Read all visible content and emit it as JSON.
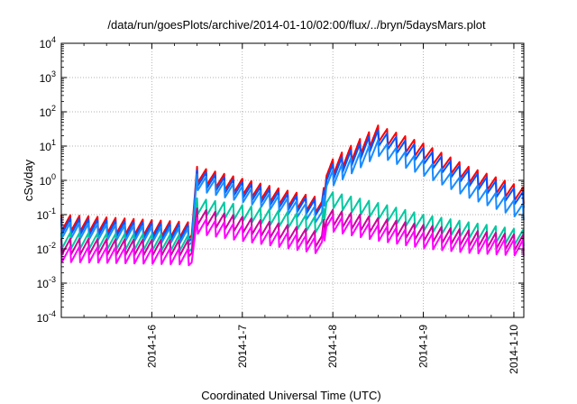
{
  "chart_data": {
    "type": "line",
    "title": "/data/run/goesPlots/archive/2014-01-10/02:00/flux/../bryn/5daysMars.plot",
    "xlabel": "Coordinated Universal Time (UTC)",
    "ylabel": "cSv/day",
    "y_scale": "log",
    "ylim": [
      0.0001,
      10000
    ],
    "xlim": [
      0,
      5.11
    ],
    "y_ticks": [
      {
        "value": 0.0001,
        "base": "10",
        "exp": "-4"
      },
      {
        "value": 0.001,
        "base": "10",
        "exp": "-3"
      },
      {
        "value": 0.01,
        "base": "10",
        "exp": "-2"
      },
      {
        "value": 0.1,
        "base": "10",
        "exp": "-1"
      },
      {
        "value": 1,
        "base": "10",
        "exp": "0"
      },
      {
        "value": 10,
        "base": "10",
        "exp": "1"
      },
      {
        "value": 100,
        "base": "10",
        "exp": "2"
      },
      {
        "value": 1000,
        "base": "10",
        "exp": "3"
      },
      {
        "value": 10000,
        "base": "10",
        "exp": "4"
      }
    ],
    "x_ticks": [
      {
        "value": 1,
        "label": "2014-1-6"
      },
      {
        "value": 2,
        "label": "2014-1-7"
      },
      {
        "value": 3,
        "label": "2014-1-8"
      },
      {
        "value": 4,
        "label": "2014-1-9"
      },
      {
        "value": 5,
        "label": "2014-1-10"
      }
    ],
    "grid": true,
    "series_colors": [
      "#ff0000",
      "#0055ff",
      "#1a8cff",
      "#00c8a0",
      "#cc0099",
      "#ff00ff"
    ],
    "series": [
      {
        "color": "#ff0000",
        "envelope": [
          [
            0,
            0.1
          ],
          [
            1.4,
            0.06
          ],
          [
            1.44,
            0.05
          ],
          [
            1.5,
            2.5
          ],
          [
            2.5,
            0.5
          ],
          [
            2.88,
            0.3
          ],
          [
            2.9,
            0.6
          ],
          [
            2.93,
            3
          ],
          [
            3.5,
            40
          ],
          [
            4.0,
            12
          ],
          [
            4.5,
            2.5
          ],
          [
            5.11,
            0.6
          ]
        ]
      },
      {
        "color": "#0055ff",
        "envelope": [
          [
            0,
            0.08
          ],
          [
            1.4,
            0.05
          ],
          [
            1.44,
            0.04
          ],
          [
            1.5,
            2.0
          ],
          [
            2.5,
            0.4
          ],
          [
            2.88,
            0.25
          ],
          [
            2.9,
            0.5
          ],
          [
            2.93,
            2.2
          ],
          [
            3.5,
            30
          ],
          [
            4.0,
            9
          ],
          [
            4.5,
            2
          ],
          [
            5.11,
            0.45
          ]
        ]
      },
      {
        "color": "#1a8cff",
        "envelope": [
          [
            0,
            0.06
          ],
          [
            1.4,
            0.04
          ],
          [
            1.44,
            0.03
          ],
          [
            1.5,
            1.5
          ],
          [
            2.5,
            0.3
          ],
          [
            2.88,
            0.15
          ],
          [
            2.9,
            0.35
          ],
          [
            2.93,
            1.5
          ],
          [
            3.5,
            15
          ],
          [
            4.0,
            4
          ],
          [
            4.5,
            0.9
          ],
          [
            5.11,
            0.2
          ]
        ]
      },
      {
        "color": "#00c8a0",
        "envelope": [
          [
            0,
            0.03
          ],
          [
            1.4,
            0.025
          ],
          [
            1.44,
            0.02
          ],
          [
            1.5,
            0.3
          ],
          [
            2.5,
            0.12
          ],
          [
            2.88,
            0.08
          ],
          [
            2.9,
            0.15
          ],
          [
            2.93,
            0.5
          ],
          [
            3.5,
            0.22
          ],
          [
            4.0,
            0.1
          ],
          [
            4.5,
            0.06
          ],
          [
            5.11,
            0.035
          ]
        ]
      },
      {
        "color": "#cc0099",
        "envelope": [
          [
            0,
            0.02
          ],
          [
            1.4,
            0.018
          ],
          [
            1.44,
            0.015
          ],
          [
            1.5,
            0.15
          ],
          [
            2.5,
            0.05
          ],
          [
            2.88,
            0.03
          ],
          [
            2.9,
            0.07
          ],
          [
            2.93,
            0.15
          ],
          [
            3.5,
            0.08
          ],
          [
            4.0,
            0.05
          ],
          [
            4.5,
            0.035
          ],
          [
            5.11,
            0.025
          ]
        ]
      },
      {
        "color": "#ff00ff",
        "envelope": [
          [
            0,
            0.012
          ],
          [
            1.4,
            0.01
          ],
          [
            1.44,
            0.008
          ],
          [
            1.5,
            0.08
          ],
          [
            2.5,
            0.03
          ],
          [
            2.88,
            0.02
          ],
          [
            2.9,
            0.04
          ],
          [
            2.93,
            0.1
          ],
          [
            3.5,
            0.05
          ],
          [
            4.0,
            0.03
          ],
          [
            4.5,
            0.022
          ],
          [
            5.11,
            0.018
          ]
        ]
      }
    ]
  }
}
